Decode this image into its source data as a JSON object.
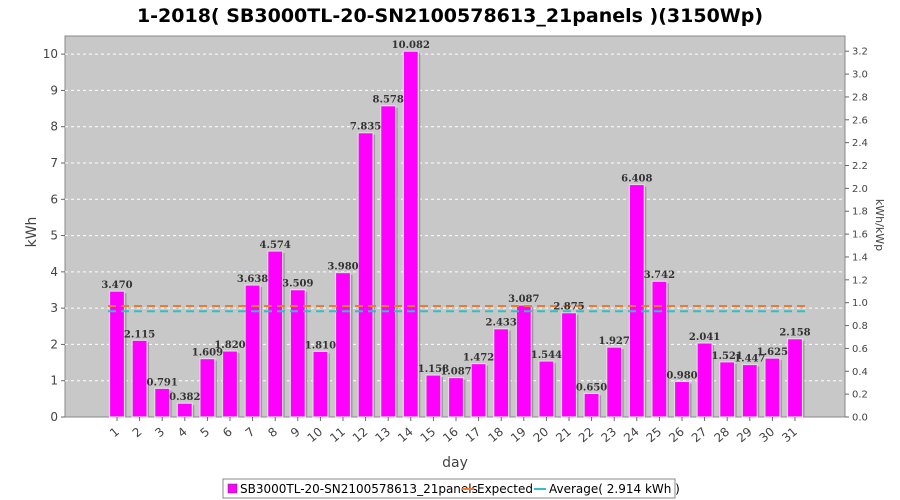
{
  "chart_data": {
    "type": "bar",
    "title": "1-2018( SB3000TL-20-SN2100578613_21panels )(3150Wp)",
    "xlabel": "day",
    "ylabel": "kWh",
    "ylabel_right": "kWh/kWp",
    "ylim": [
      0,
      10.5
    ],
    "ylim_right": [
      0,
      3.333
    ],
    "yticks": [
      "0",
      "1",
      "2",
      "3",
      "4",
      "5",
      "6",
      "7",
      "8",
      "9",
      "10"
    ],
    "yticks_right": [
      "0.0",
      "0.2",
      "0.4",
      "0.6",
      "0.8",
      "1.0",
      "1.2",
      "1.4",
      "1.6",
      "1.8",
      "2.0",
      "2.2",
      "2.4",
      "2.6",
      "2.8",
      "3.0",
      "3.2"
    ],
    "categories": [
      "1",
      "2",
      "3",
      "4",
      "5",
      "6",
      "7",
      "8",
      "9",
      "10",
      "11",
      "12",
      "13",
      "14",
      "15",
      "16",
      "17",
      "18",
      "19",
      "20",
      "21",
      "22",
      "23",
      "24",
      "25",
      "26",
      "27",
      "28",
      "29",
      "30",
      "31"
    ],
    "series": [
      {
        "name": "SB3000TL-20-SN2100578613_21panels",
        "color": "#ff00ff",
        "values": [
          3.47,
          2.115,
          0.791,
          0.382,
          1.609,
          1.82,
          3.638,
          4.574,
          3.509,
          1.81,
          3.98,
          7.835,
          8.578,
          10.082,
          1.158,
          1.087,
          1.472,
          2.433,
          3.087,
          1.544,
          2.875,
          0.65,
          1.927,
          6.408,
          3.742,
          0.98,
          2.041,
          1.521,
          1.447,
          1.625,
          2.158
        ],
        "labels": [
          "3.470",
          "2.115",
          "0.791",
          "0.382",
          "1.609",
          "1.820",
          "3.638",
          "4.574",
          "3.509",
          "1.810",
          "3.980",
          "7.835",
          "8.578",
          "10.082",
          "1.158",
          "1.087",
          "1.472",
          "2.433",
          "3.087",
          "1.544",
          "2.875",
          "0.650",
          "1.927",
          "6.408",
          "3.742",
          "0.980",
          "2.041",
          "1.521",
          "1.447",
          "1.625",
          "2.158"
        ]
      }
    ],
    "reference_lines": [
      {
        "name": "Expected",
        "value": 3.06,
        "color": "#f07830",
        "style": "dashed"
      },
      {
        "name": "Average( 2.914 kWh )",
        "value": 2.914,
        "color": "#30c0c0",
        "style": "dashed"
      }
    ],
    "legend": {
      "position": "bottom",
      "items": [
        "SB3000TL-20-SN2100578613_21panels",
        "Expected",
        "Average( 2.914 kWh )"
      ]
    },
    "grid": true,
    "plot_background": "#c8c8c8"
  }
}
